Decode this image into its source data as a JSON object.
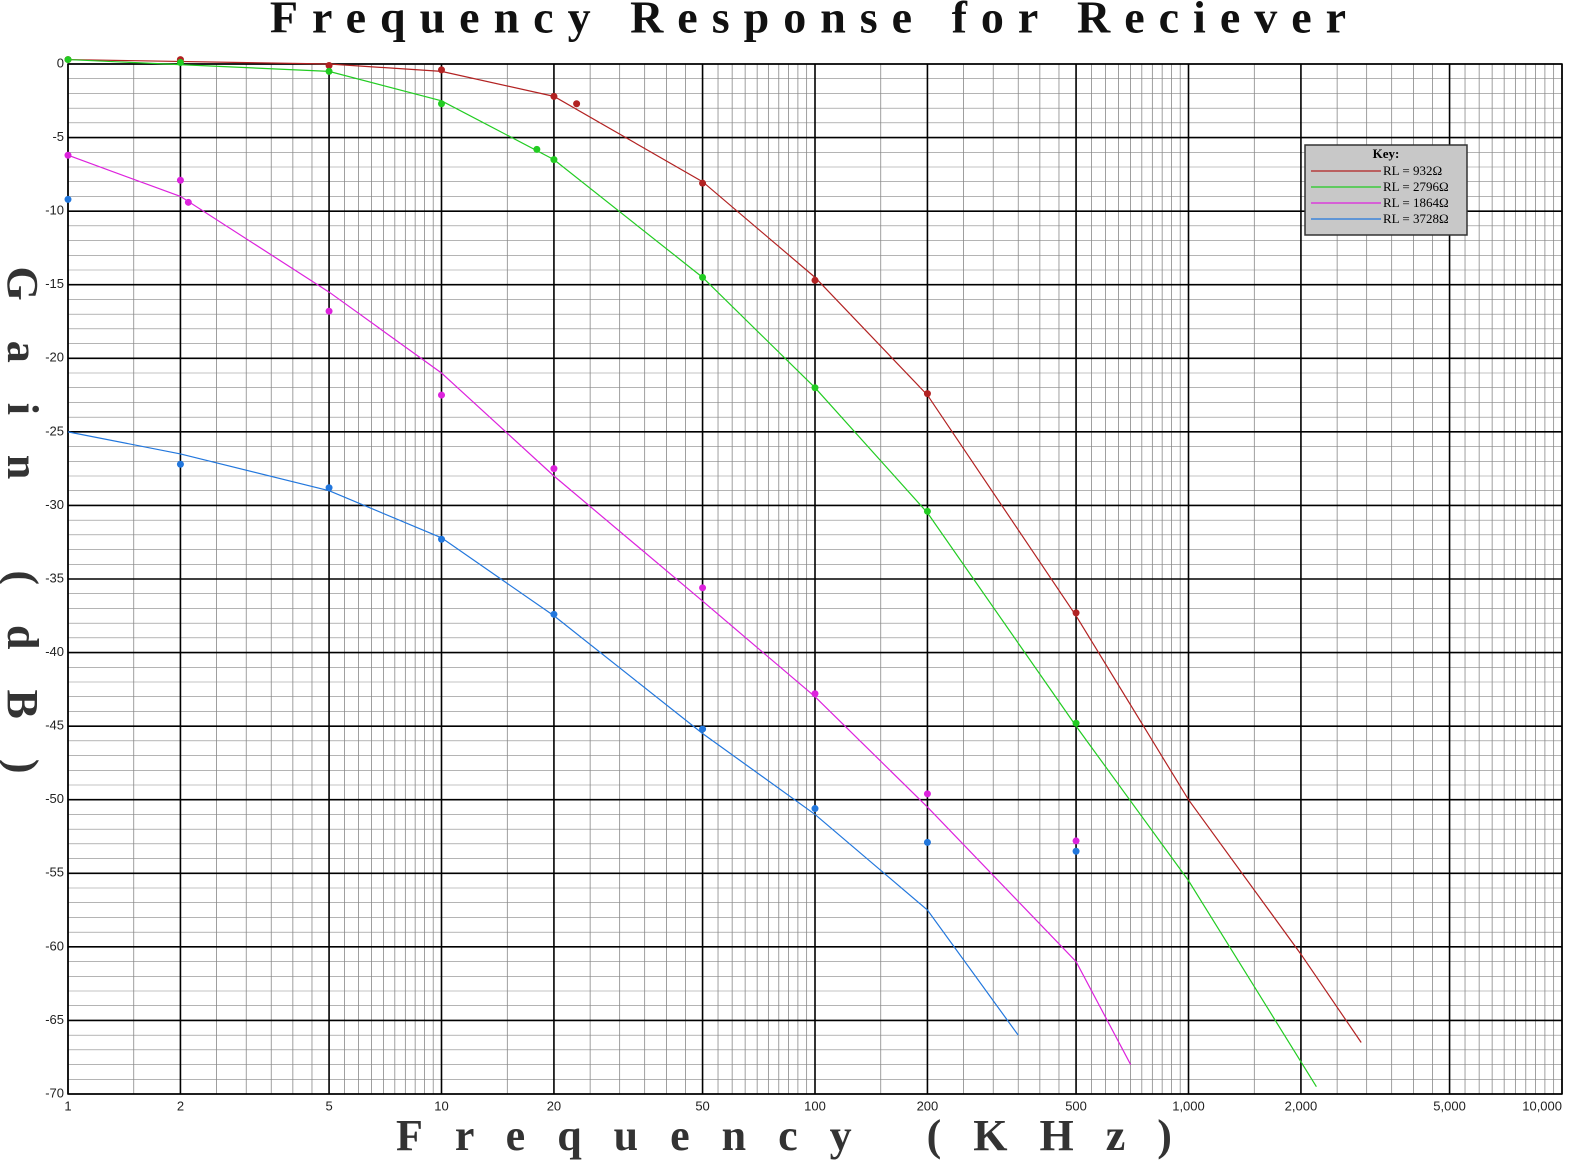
{
  "chart_data": {
    "type": "scatter",
    "title": "Frequency Response for Reciever",
    "x_label": "Frequency (KHz)",
    "y_label": "Gain (dB)",
    "log_x": true,
    "grid": true,
    "legend_title": "Key:",
    "legend_position": "upper right",
    "xlim": [
      1,
      10000
    ],
    "ylim": [
      -70,
      0
    ],
    "xticks": [
      1,
      2,
      5,
      10,
      20,
      50,
      100,
      200,
      500,
      {
        "value": 1000,
        "label": "1,000"
      },
      {
        "value": 2000,
        "label": "2,000"
      },
      {
        "value": 5000,
        "label": "5,000"
      },
      {
        "value": 10000,
        "label": "10,000"
      }
    ],
    "yticks": [
      0,
      -5,
      -10,
      -15,
      -20,
      -25,
      -30,
      -35,
      -40,
      -45,
      -50,
      -55,
      -60,
      -65,
      -70
    ],
    "series": [
      {
        "name": "RL = 932Ω",
        "color": "#b22222",
        "x": [
          1,
          2,
          5,
          10,
          20,
          23,
          50,
          100,
          200,
          500
        ],
        "values": [
          0.3,
          0.3,
          -0.1,
          -0.4,
          -2.2,
          -2.7,
          -8.1,
          -14.7,
          -22.4,
          -37.3
        ],
        "fit_x": [
          1,
          5,
          10,
          20,
          50,
          100,
          200,
          500,
          1000,
          2000,
          2900
        ],
        "fit_values": [
          0.3,
          0,
          -0.5,
          -2.2,
          -8,
          -14.5,
          -22.5,
          -37.5,
          -50,
          -60.5,
          -66.5
        ]
      },
      {
        "name": "RL = 2796Ω",
        "color": "#22cc22",
        "x": [
          1,
          2,
          5,
          10,
          18,
          20,
          50,
          100,
          200,
          500
        ],
        "values": [
          0.3,
          0.1,
          -0.5,
          -2.7,
          -5.8,
          -6.5,
          -14.5,
          -22.0,
          -30.4,
          -44.8
        ],
        "fit_x": [
          1,
          5,
          10,
          20,
          50,
          100,
          200,
          500,
          1000,
          2200
        ],
        "fit_values": [
          0.3,
          -0.5,
          -2.5,
          -6.5,
          -14.5,
          -22,
          -30.5,
          -45,
          -55.5,
          -69.5
        ]
      },
      {
        "name": "RL = 1864Ω",
        "color": "#dd22dd",
        "x": [
          1,
          2,
          2.1,
          5,
          10,
          20,
          50,
          100,
          200,
          500
        ],
        "values": [
          -6.2,
          -7.9,
          -9.4,
          -16.8,
          -22.5,
          -27.5,
          -35.6,
          -42.8,
          -49.6,
          -52.8
        ],
        "fit_x": [
          1,
          2,
          5,
          10,
          20,
          50,
          100,
          200,
          500,
          700
        ],
        "fit_values": [
          -6.2,
          -9,
          -15.5,
          -21,
          -28,
          -36.5,
          -43,
          -50.5,
          -61,
          -68
        ]
      },
      {
        "name": "RL = 3728Ω",
        "color": "#2277dd",
        "x": [
          1,
          2,
          5,
          10,
          20,
          50,
          100,
          200,
          500
        ],
        "values": [
          -9.2,
          -27.2,
          -28.8,
          -32.3,
          -37.4,
          -45.2,
          -50.6,
          -52.9,
          -53.5
        ],
        "fit_x": [
          1,
          2,
          5,
          10,
          20,
          50,
          100,
          200,
          350
        ],
        "fit_values": [
          -25,
          -26.5,
          -29,
          -32.2,
          -37.5,
          -45.5,
          -51,
          -57.5,
          -66
        ]
      }
    ]
  }
}
